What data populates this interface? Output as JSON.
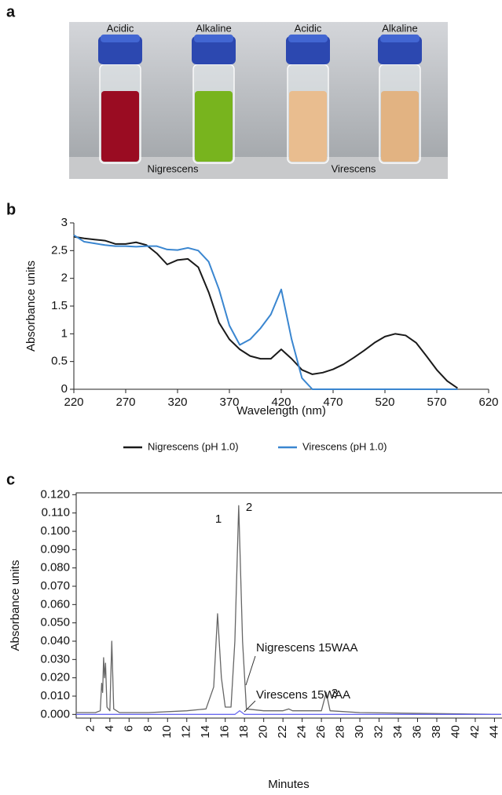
{
  "photo": {
    "panel_label": "a",
    "vial_labels": [
      "Acidic",
      "Alkaline",
      "Acidic",
      "Alkaline"
    ],
    "sample_labels": [
      "Nigrescens",
      "Virescens"
    ]
  },
  "chart_data": [
    {
      "type": "line",
      "panel_label": "b",
      "xlabel": "Wavelength (nm)",
      "ylabel": "Absorbance units",
      "x": [
        220,
        230,
        240,
        250,
        260,
        270,
        280,
        290,
        300,
        310,
        320,
        330,
        340,
        350,
        360,
        370,
        380,
        390,
        400,
        410,
        420,
        430,
        440,
        450,
        460,
        470,
        480,
        490,
        500,
        510,
        520,
        530,
        540,
        550,
        560,
        570,
        580,
        590
      ],
      "series": [
        {
          "name": "Nigrescens (pH 1.0)",
          "color": "#1a1a1a",
          "values": [
            2.75,
            2.72,
            2.7,
            2.68,
            2.62,
            2.62,
            2.65,
            2.6,
            2.45,
            2.25,
            2.33,
            2.35,
            2.2,
            1.75,
            1.2,
            0.9,
            0.72,
            0.6,
            0.55,
            0.55,
            0.72,
            0.55,
            0.35,
            0.27,
            0.3,
            0.36,
            0.45,
            0.57,
            0.7,
            0.84,
            0.95,
            1.0,
            0.97,
            0.84,
            0.6,
            0.35,
            0.15,
            0.02
          ]
        },
        {
          "name": "Virescens (pH 1.0)",
          "color": "#3a86d0",
          "values": [
            2.78,
            2.66,
            2.63,
            2.6,
            2.58,
            2.58,
            2.57,
            2.58,
            2.58,
            2.52,
            2.51,
            2.55,
            2.5,
            2.3,
            1.8,
            1.15,
            0.8,
            0.9,
            1.1,
            1.35,
            1.8,
            0.9,
            0.2,
            0,
            0,
            0,
            0,
            0,
            0,
            0,
            0,
            0,
            0,
            0,
            0,
            0,
            0,
            0
          ]
        }
      ],
      "xlim": [
        220,
        620
      ],
      "xticks": [
        220,
        270,
        320,
        370,
        420,
        470,
        520,
        570,
        620
      ],
      "ylim": [
        0,
        3
      ],
      "yticks": [
        0,
        0.5,
        1,
        1.5,
        2,
        2.5,
        3
      ],
      "legend": "bottom"
    },
    {
      "type": "line",
      "panel_label": "c",
      "xlabel": "Minutes",
      "ylabel": "Absorbance units",
      "peak_labels": [
        "1",
        "2",
        "3"
      ],
      "series": [
        {
          "name": "Nigrescens 15WAA",
          "color": "#666666",
          "x": [
            0.5,
            2.5,
            3.0,
            3.15,
            3.25,
            3.35,
            3.45,
            3.55,
            3.7,
            4.0,
            4.2,
            4.4,
            5,
            8,
            12,
            14,
            14.8,
            15.2,
            15.6,
            16,
            16.6,
            17.0,
            17.4,
            17.8,
            18.2,
            20,
            22,
            22.6,
            23,
            24,
            26,
            26.5,
            26.9,
            30,
            44.7
          ],
          "values": [
            0.001,
            0.001,
            0.002,
            0.017,
            0.012,
            0.031,
            0.02,
            0.028,
            0.004,
            0.002,
            0.04,
            0.003,
            0.001,
            0.001,
            0.002,
            0.003,
            0.015,
            0.055,
            0.02,
            0.004,
            0.004,
            0.04,
            0.114,
            0.04,
            0.003,
            0.002,
            0.002,
            0.003,
            0.002,
            0.002,
            0.002,
            0.012,
            0.002,
            0.001,
            0
          ]
        },
        {
          "name": "Virescens 15WAA",
          "color": "#6a6af0",
          "x": [
            0.5,
            17.0,
            17.5,
            18.0,
            44.7
          ],
          "values": [
            0,
            0,
            0.002,
            0,
            0
          ]
        }
      ],
      "xlim": [
        0.5,
        44.7
      ],
      "xticks": [
        2,
        4,
        6,
        8,
        10,
        12,
        14,
        16,
        18,
        20,
        22,
        24,
        26,
        28,
        30,
        32,
        34,
        36,
        38,
        40,
        42,
        44
      ],
      "ylim": [
        -0.002,
        0.121
      ],
      "yticks": [
        {
          "value": 0,
          "label": "0.000"
        },
        {
          "value": 0.01,
          "label": "0.010"
        },
        {
          "value": 0.02,
          "label": "0.020"
        },
        {
          "value": 0.03,
          "label": "0.030"
        },
        {
          "value": 0.04,
          "label": "0.040"
        },
        {
          "value": 0.05,
          "label": "0.050"
        },
        {
          "value": 0.06,
          "label": "0.060"
        },
        {
          "value": 0.07,
          "label": "0.070"
        },
        {
          "value": 0.08,
          "label": "0.080"
        },
        {
          "value": 0.09,
          "label": "0.090"
        },
        {
          "value": 0.1,
          "label": "0.100"
        },
        {
          "value": 0.11,
          "label": "0.110"
        },
        {
          "value": 0.12,
          "label": "0.120"
        }
      ]
    }
  ]
}
